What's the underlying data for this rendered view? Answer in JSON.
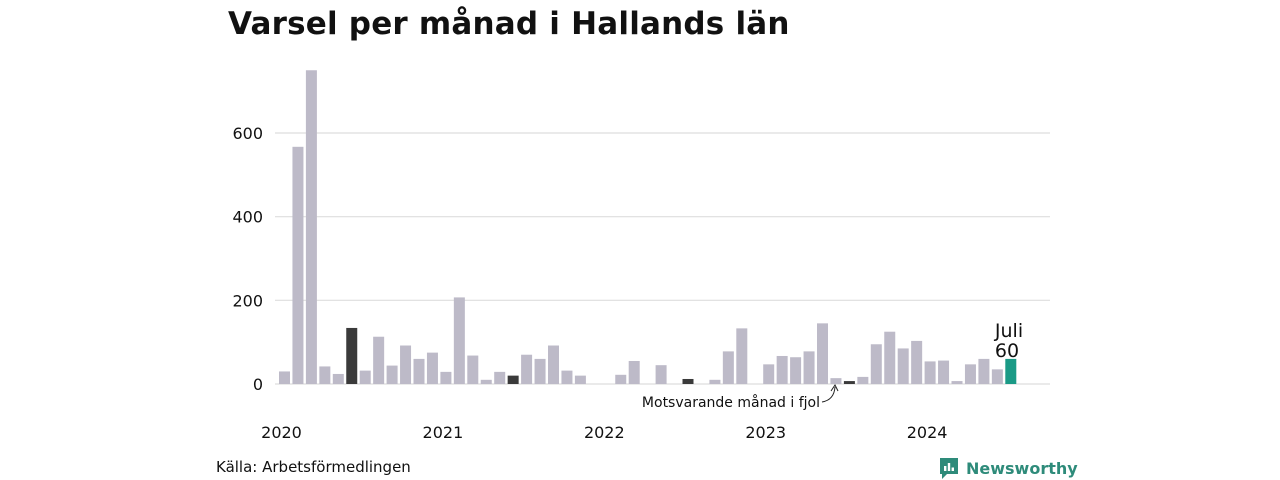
{
  "chart_data": {
    "type": "bar",
    "title": "Varsel per månad i Hallands län",
    "xlabel": "",
    "ylabel": "",
    "ylim": [
      0,
      750
    ],
    "yticks": [
      0,
      200,
      400,
      600
    ],
    "grid": true,
    "x_tick_labels": [
      "2020",
      "2021",
      "2022",
      "2023",
      "2024"
    ],
    "categories": [
      "2020-01",
      "2020-02",
      "2020-03",
      "2020-04",
      "2020-05",
      "2020-06",
      "2020-07",
      "2020-08",
      "2020-09",
      "2020-10",
      "2020-11",
      "2020-12",
      "2021-01",
      "2021-02",
      "2021-03",
      "2021-04",
      "2021-05",
      "2021-06",
      "2021-07",
      "2021-08",
      "2021-09",
      "2021-10",
      "2021-11",
      "2021-12",
      "2022-01",
      "2022-02",
      "2022-03",
      "2022-04",
      "2022-05",
      "2022-06",
      "2022-07",
      "2022-08",
      "2022-09",
      "2022-10",
      "2022-11",
      "2022-12",
      "2023-01",
      "2023-02",
      "2023-03",
      "2023-04",
      "2023-05",
      "2023-06",
      "2023-07",
      "2023-08",
      "2023-09",
      "2023-10",
      "2023-11",
      "2023-12",
      "2024-01",
      "2024-02",
      "2024-03",
      "2024-04",
      "2024-05",
      "2024-06",
      "2024-07"
    ],
    "values": [
      30,
      567,
      750,
      42,
      24,
      134,
      32,
      113,
      44,
      92,
      60,
      75,
      29,
      207,
      68,
      10,
      29,
      20,
      70,
      60,
      92,
      32,
      20,
      0,
      0,
      22,
      55,
      0,
      45,
      0,
      12,
      0,
      10,
      78,
      133,
      0,
      47,
      67,
      64,
      78,
      145,
      14,
      7,
      17,
      95,
      125,
      85,
      103,
      54,
      56,
      7,
      47,
      60,
      35,
      60
    ],
    "highlight_indices": [
      5,
      17,
      30,
      42
    ],
    "current_index": 54,
    "colors": {
      "default": "#bdbac8",
      "highlight": "#3a3a3a",
      "current": "#1a9a86",
      "grid": "#dedede"
    },
    "annotations": {
      "current_month": "Juli",
      "current_value": "60",
      "last_year": "Motsvarande månad i fjol"
    }
  },
  "footer": {
    "source": "Källa: Arbetsförmedlingen",
    "brand": "Newsworthy"
  }
}
